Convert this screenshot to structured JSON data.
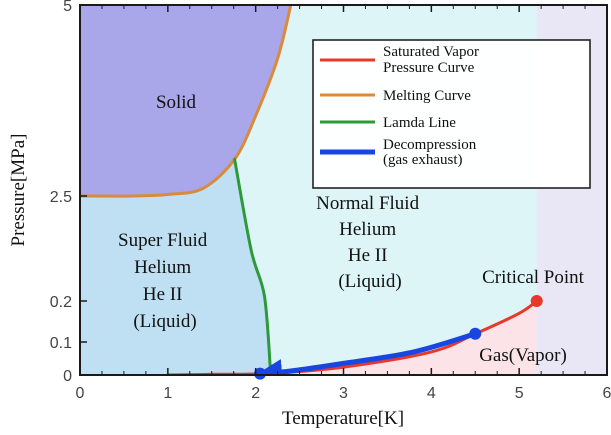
{
  "chart_data": {
    "type": "line",
    "title": "",
    "xlabel": "Temperature[K]",
    "ylabel": "Pressure[MPa]",
    "xlim": [
      0,
      6
    ],
    "ylim": [
      0,
      5
    ],
    "x_ticks": [
      "0",
      "1",
      "2",
      "3",
      "4",
      "5",
      "6"
    ],
    "y_ticks": [
      "0",
      "0.1",
      "0.2",
      "2.5",
      "5"
    ],
    "y_scale": "piecewise (stretched at low pressure)",
    "grid": false,
    "legend_position": "top-right",
    "regions": [
      {
        "lines": [
          "Solid"
        ],
        "color": "#a9a6ea"
      },
      {
        "lines": [
          "Super Fluid",
          "Helium",
          "He II",
          "(Liquid)"
        ],
        "color": "#bfe0f3"
      },
      {
        "lines": [
          "Normal Fluid",
          "Helium",
          "He II",
          "(Liquid)"
        ],
        "color": "#def5f7"
      },
      {
        "lines": [
          "Gas(Vapor)"
        ],
        "color": "#fbe3e8"
      },
      {
        "lines": [],
        "color": "#ece2f5"
      }
    ],
    "series": [
      {
        "name": "Saturated Vapor Pressure Curve",
        "color": "#e8382a",
        "points": [
          [
            1.0,
            0.0
          ],
          [
            1.5,
            0.002
          ],
          [
            2.17,
            0.005
          ],
          [
            3.0,
            0.024
          ],
          [
            4.0,
            0.07
          ],
          [
            4.5,
            0.12
          ],
          [
            5.0,
            0.17
          ],
          [
            5.2,
            0.2
          ]
        ]
      },
      {
        "name": "Melting Curve",
        "color": "#d98b3a",
        "points": [
          [
            0.0,
            2.5
          ],
          [
            0.6,
            2.5
          ],
          [
            1.0,
            2.52
          ],
          [
            1.4,
            2.6
          ],
          [
            1.76,
            2.98
          ],
          [
            2.0,
            3.55
          ],
          [
            2.25,
            4.3
          ],
          [
            2.4,
            5.0
          ]
        ]
      },
      {
        "name": "Lamda Line",
        "color": "#2d9a3a",
        "points": [
          [
            1.76,
            2.98
          ],
          [
            1.95,
            1.3
          ],
          [
            2.1,
            0.3
          ],
          [
            2.17,
            0.005
          ]
        ]
      },
      {
        "name": "Decompression (gas exhaust)",
        "legend_lines": [
          "Decompression",
          "(gas exhaust)"
        ],
        "color": "#1846e0",
        "points": [
          [
            4.5,
            0.12
          ],
          [
            3.8,
            0.07
          ],
          [
            3.0,
            0.035
          ],
          [
            2.4,
            0.012
          ],
          [
            2.05,
            0.004
          ]
        ]
      }
    ],
    "annotations": [
      {
        "text": "Critical Point",
        "point": [
          5.2,
          0.2
        ]
      }
    ],
    "markers": [
      {
        "point": [
          5.2,
          0.2
        ],
        "color": "#e8382a"
      },
      {
        "point": [
          4.5,
          0.12
        ],
        "color": "#1846e0"
      },
      {
        "point": [
          2.05,
          0.004
        ],
        "color": "#1846e0"
      }
    ]
  }
}
